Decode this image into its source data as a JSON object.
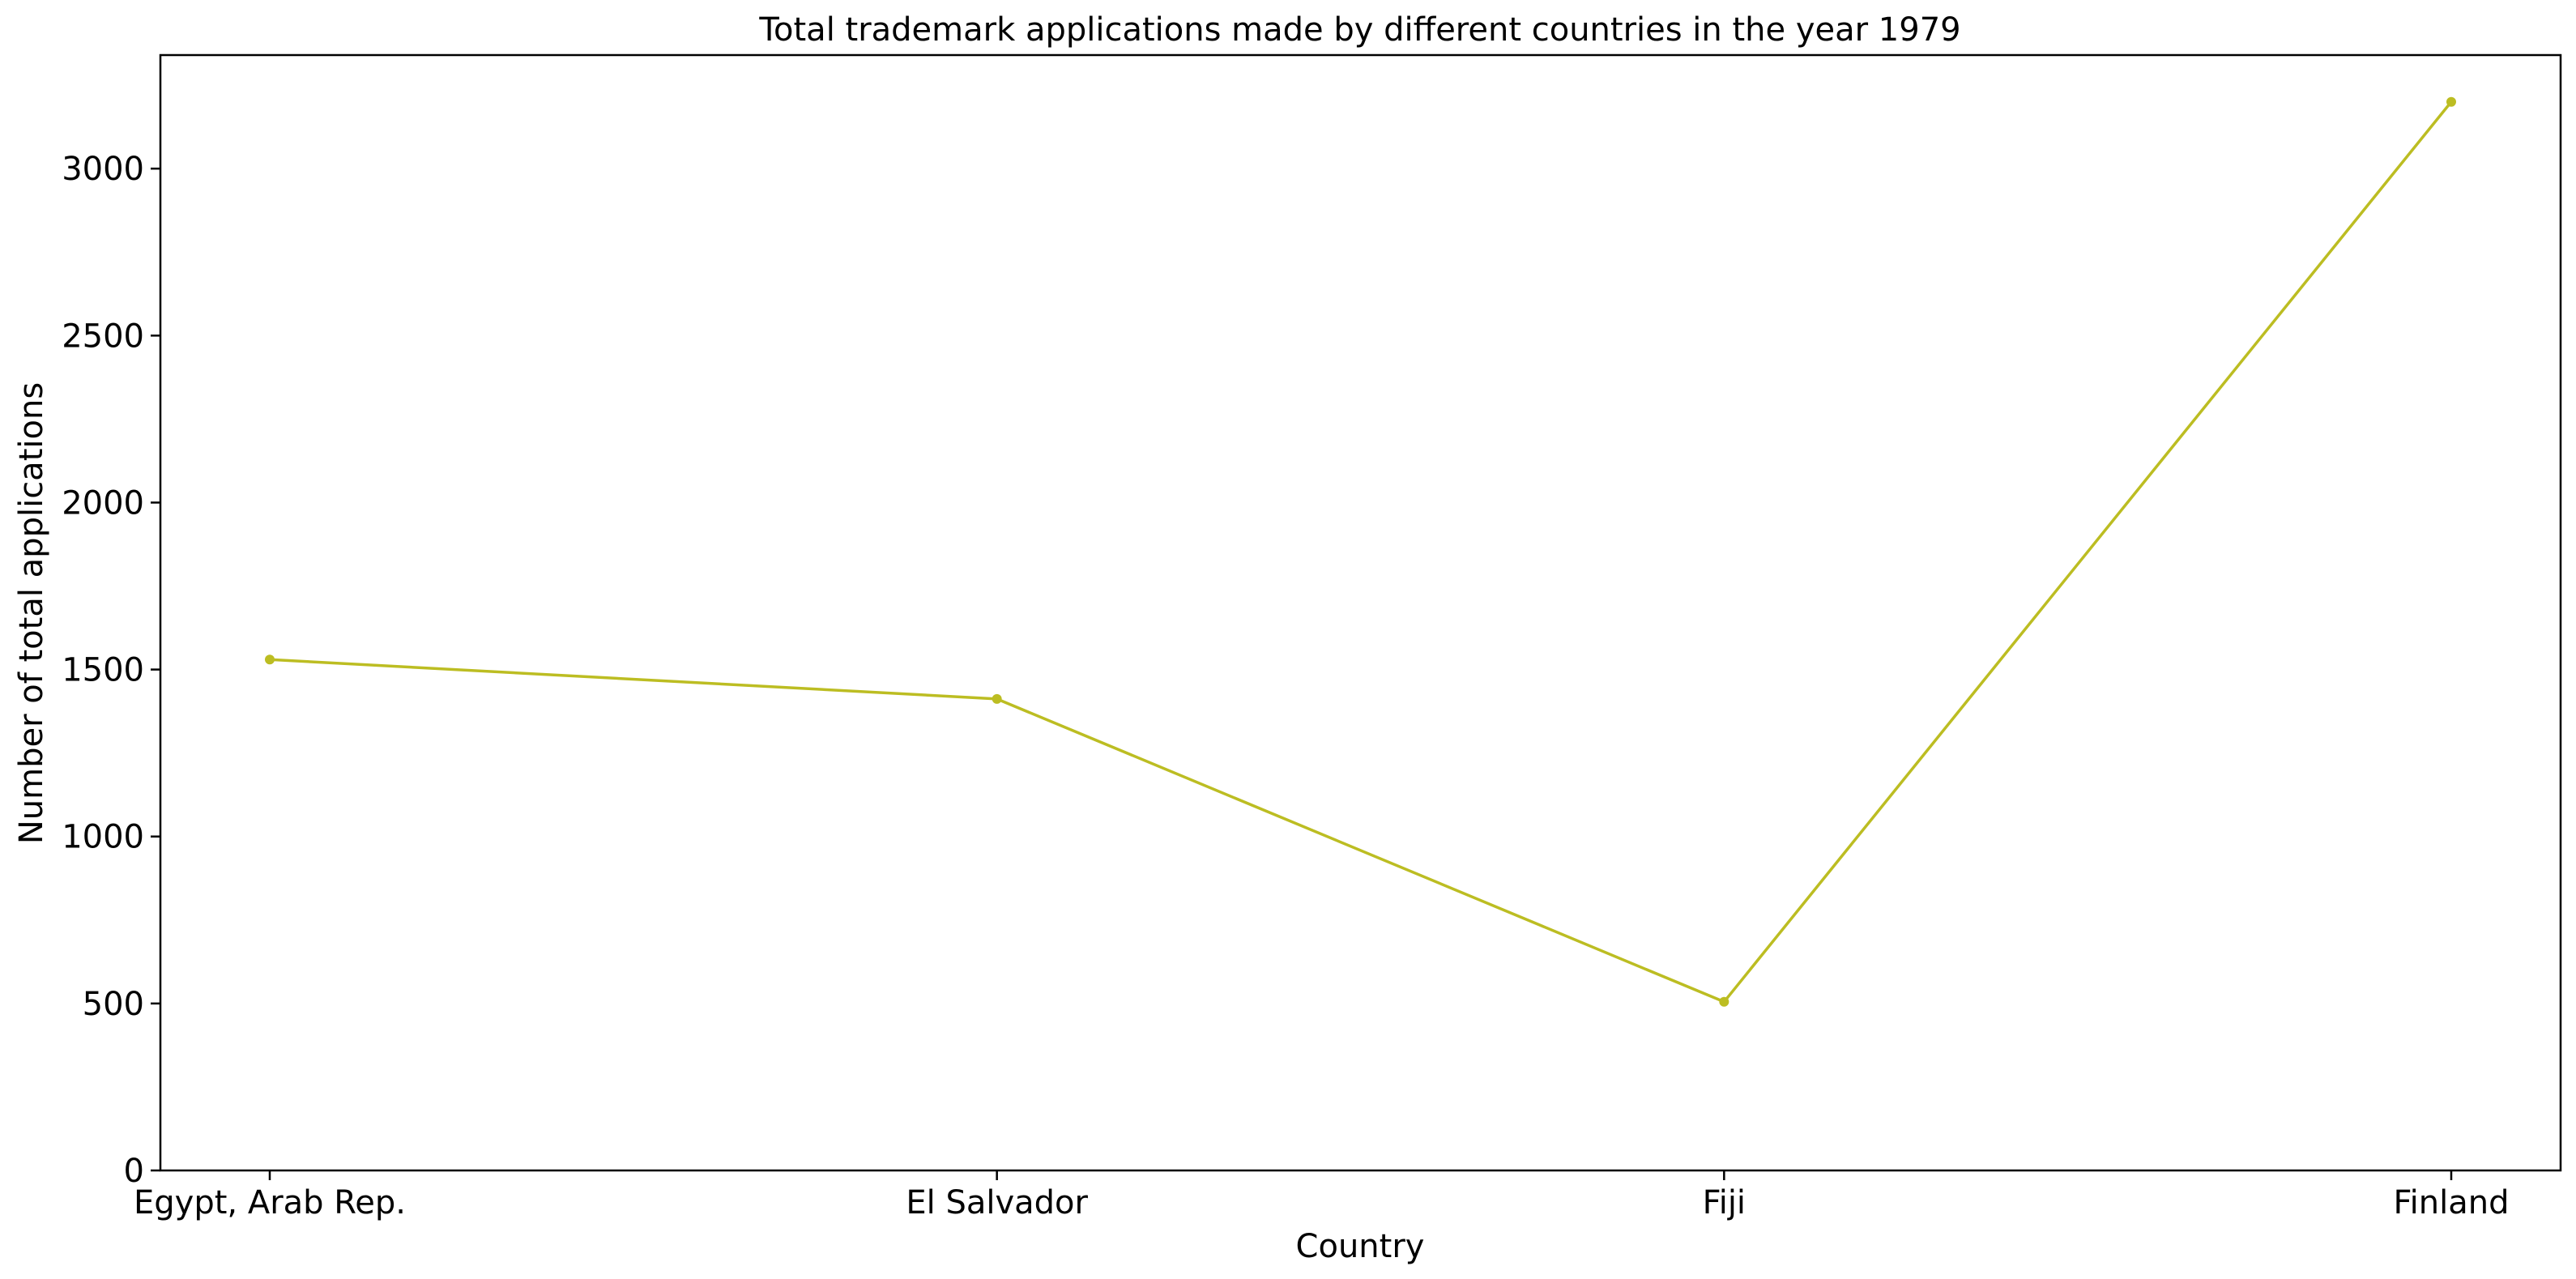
{
  "chart_data": {
    "type": "line",
    "title": "Total trademark applications made by different countries in the year 1979",
    "xlabel": "Country",
    "ylabel": "Number of total applications",
    "categories": [
      "Egypt, Arab Rep.",
      "El Salvador",
      "Fiji",
      "Finland"
    ],
    "series": [
      {
        "values": [
          1530,
          1412,
          505,
          3200
        ],
        "color": "#bcbd22"
      }
    ],
    "ylim": [
      0,
      3340
    ],
    "yticks": [
      0,
      500,
      1000,
      1500,
      2000,
      2500,
      3000
    ],
    "grid": false,
    "legend": "none"
  }
}
